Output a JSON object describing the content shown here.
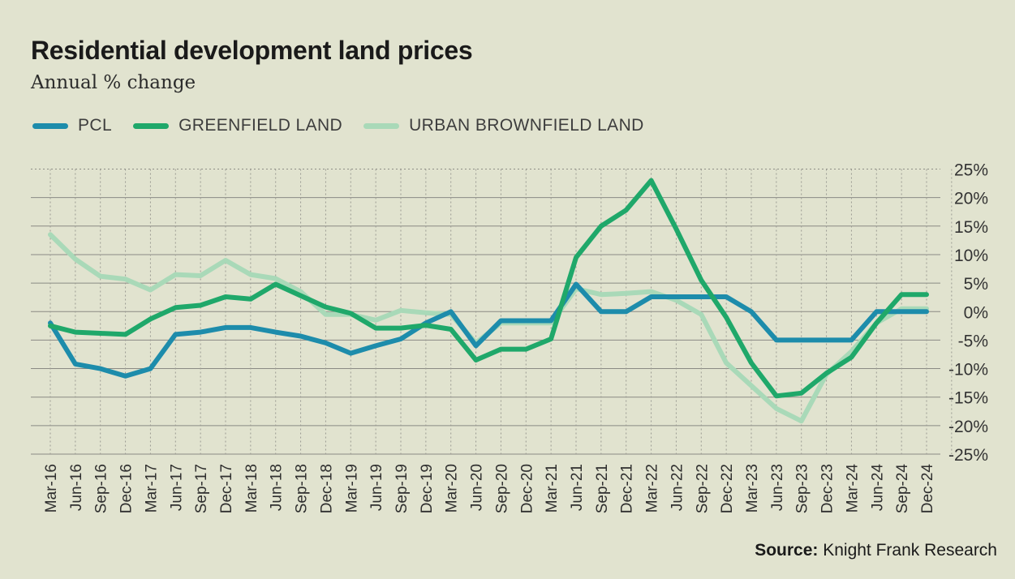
{
  "header": {
    "title": "Residential development land prices",
    "subtitle": "Annual % change"
  },
  "legend": {
    "items": [
      {
        "label": "PCL",
        "color": "#1d8cab"
      },
      {
        "label": "GREENFIELD LAND",
        "color": "#1fa86a"
      },
      {
        "label": "URBAN BROWNFIELD LAND",
        "color": "#a9d9b8"
      }
    ]
  },
  "footer": {
    "source_label": "Source:",
    "source_text": "Knight Frank Research"
  },
  "chart_data": {
    "type": "line",
    "title": "Residential development land prices",
    "subtitle": "Annual % change",
    "x": [
      "Mar-16",
      "Jun-16",
      "Sep-16",
      "Dec-16",
      "Mar-17",
      "Jun-17",
      "Sep-17",
      "Dec-17",
      "Mar-18",
      "Jun-18",
      "Sep-18",
      "Dec-18",
      "Mar-19",
      "Jun-19",
      "Sep-19",
      "Dec-19",
      "Mar-20",
      "Jun-20",
      "Sep-20",
      "Dec-20",
      "Mar-21",
      "Jun-21",
      "Sep-21",
      "Dec-21",
      "Mar-22",
      "Jun-22",
      "Sep-22",
      "Dec-22",
      "Mar-23",
      "Jun-23",
      "Sep-23",
      "Dec-23",
      "Mar-24",
      "Jun-24",
      "Sep-24",
      "Dec-24"
    ],
    "ylim": [
      -25,
      25
    ],
    "yticks": [
      25,
      20,
      15,
      10,
      5,
      0,
      -5,
      -10,
      -15,
      -20,
      -25
    ],
    "ytick_labels": [
      "25%",
      "20%",
      "15%",
      "10%",
      "5%",
      "0%",
      "-5%",
      "-10%",
      "-15%",
      "-20%",
      "-25%"
    ],
    "grid": true,
    "y_axis_side": "right",
    "legend_position": "top-left",
    "series": [
      {
        "name": "URBAN BROWNFIELD LAND",
        "color": "#a9d9b8",
        "values": [
          13.5,
          9.2,
          6.2,
          5.7,
          3.8,
          6.5,
          6.3,
          9.0,
          6.5,
          5.8,
          3.5,
          -0.5,
          -0.5,
          -1.5,
          0.2,
          -0.2,
          -0.5,
          -5.5,
          -2.0,
          -2.0,
          -2.0,
          4.0,
          3.0,
          3.2,
          3.5,
          2.0,
          -0.5,
          -9.0,
          -13.0,
          -17.0,
          -19.2,
          -11.0,
          -7.0,
          -2.0,
          0.5,
          0.5
        ]
      },
      {
        "name": "PCL",
        "color": "#1d8cab",
        "values": [
          -2.0,
          -9.2,
          -10.0,
          -11.3,
          -10.0,
          -4.0,
          -3.6,
          -2.8,
          -2.8,
          -3.6,
          -4.3,
          -5.5,
          -7.3,
          -6.0,
          -4.8,
          -2.0,
          0.0,
          -6.0,
          -1.6,
          -1.6,
          -1.6,
          4.8,
          0.0,
          0.0,
          2.6,
          2.6,
          2.6,
          2.6,
          0.0,
          -5.0,
          -5.0,
          -5.0,
          -5.0,
          0.0,
          0.0,
          0.0
        ]
      },
      {
        "name": "GREENFIELD LAND",
        "color": "#1fa86a",
        "values": [
          -2.5,
          -3.6,
          -3.8,
          -4.0,
          -1.3,
          0.7,
          1.1,
          2.6,
          2.2,
          4.8,
          2.8,
          0.8,
          -0.3,
          -2.9,
          -2.9,
          -2.4,
          -3.1,
          -8.5,
          -6.6,
          -6.6,
          -4.8,
          9.5,
          15.0,
          17.8,
          23.0,
          14.5,
          5.5,
          -1.0,
          -9.0,
          -14.8,
          -14.3,
          -10.8,
          -8.0,
          -2.0,
          3.0,
          3.0
        ]
      }
    ]
  }
}
